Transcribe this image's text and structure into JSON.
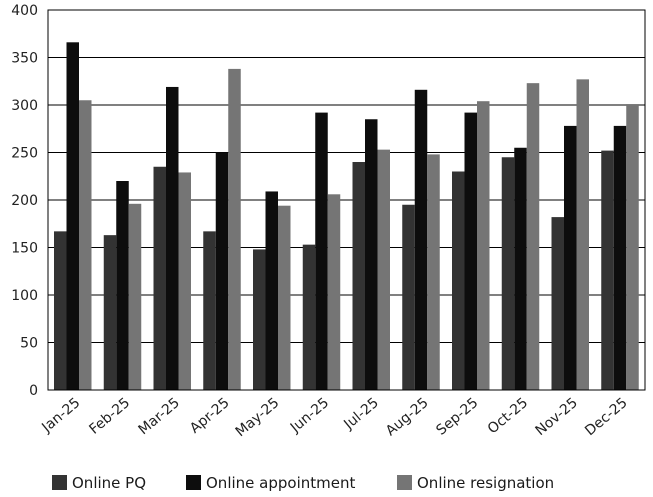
{
  "chart_data": {
    "type": "bar",
    "categories": [
      "Jan-25",
      "Feb-25",
      "Mar-25",
      "Apr-25",
      "May-25",
      "Jun-25",
      "Jul-25",
      "Aug-25",
      "Sep-25",
      "Oct-25",
      "Nov-25",
      "Dec-25"
    ],
    "series": [
      {
        "name": "Online PQ",
        "color": "#333333",
        "values": [
          167,
          163,
          235,
          167,
          148,
          153,
          240,
          195,
          230,
          245,
          182,
          252
        ]
      },
      {
        "name": "Online appointment",
        "color": "#0d0d0d",
        "values": [
          366,
          220,
          319,
          250,
          209,
          292,
          285,
          316,
          292,
          255,
          278,
          278
        ]
      },
      {
        "name": "Online resignation",
        "color": "#757575",
        "values": [
          305,
          196,
          229,
          338,
          194,
          206,
          253,
          248,
          304,
          323,
          327,
          301
        ]
      }
    ],
    "title": "",
    "xlabel": "",
    "ylabel": "",
    "ylim": [
      0,
      400
    ],
    "yticks": [
      0,
      50,
      100,
      150,
      200,
      250,
      300,
      350,
      400
    ],
    "grid": true,
    "legend": "bottom"
  }
}
